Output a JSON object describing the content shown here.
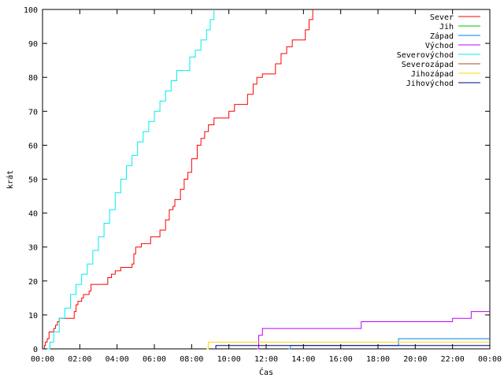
{
  "chart_data": {
    "type": "line",
    "xlabel": "Čas",
    "ylabel": "krát",
    "xlim": [
      0,
      24
    ],
    "ylim": [
      0,
      100
    ],
    "x_ticks": [
      "00:00",
      "02:00",
      "04:00",
      "06:00",
      "08:00",
      "10:00",
      "12:00",
      "14:00",
      "16:00",
      "18:00",
      "20:00",
      "22:00",
      "00:00"
    ],
    "y_ticks": [
      "0",
      "10",
      "20",
      "30",
      "40",
      "50",
      "60",
      "70",
      "80",
      "90",
      "100"
    ],
    "legend_position": "top-right",
    "series": [
      {
        "name": "Sever",
        "color": "#ff0000",
        "points": [
          [
            0,
            0
          ],
          [
            0.1,
            1
          ],
          [
            0.15,
            2
          ],
          [
            0.25,
            3
          ],
          [
            0.35,
            5
          ],
          [
            0.6,
            6
          ],
          [
            0.7,
            7
          ],
          [
            0.8,
            8
          ],
          [
            0.9,
            9
          ],
          [
            1.6,
            9
          ],
          [
            1.7,
            11
          ],
          [
            1.8,
            13
          ],
          [
            1.9,
            14
          ],
          [
            2.1,
            15
          ],
          [
            2.2,
            16
          ],
          [
            2.5,
            17
          ],
          [
            2.6,
            19
          ],
          [
            3.3,
            19
          ],
          [
            3.5,
            21
          ],
          [
            3.7,
            22
          ],
          [
            3.9,
            23
          ],
          [
            4.2,
            24
          ],
          [
            4.8,
            25
          ],
          [
            4.9,
            28
          ],
          [
            5.0,
            30
          ],
          [
            5.3,
            31
          ],
          [
            5.7,
            31
          ],
          [
            5.8,
            33
          ],
          [
            6.2,
            33
          ],
          [
            6.3,
            35
          ],
          [
            6.6,
            38
          ],
          [
            6.8,
            41
          ],
          [
            7.0,
            42
          ],
          [
            7.1,
            44
          ],
          [
            7.4,
            47
          ],
          [
            7.6,
            50
          ],
          [
            7.8,
            52
          ],
          [
            8.0,
            56
          ],
          [
            8.3,
            60
          ],
          [
            8.5,
            62
          ],
          [
            8.7,
            64
          ],
          [
            8.9,
            66
          ],
          [
            9.2,
            68
          ],
          [
            9.9,
            68
          ],
          [
            10.0,
            70
          ],
          [
            10.3,
            72
          ],
          [
            10.9,
            72
          ],
          [
            11.0,
            75
          ],
          [
            11.3,
            78
          ],
          [
            11.5,
            80
          ],
          [
            11.8,
            81
          ],
          [
            12.3,
            81
          ],
          [
            12.5,
            84
          ],
          [
            12.8,
            87
          ],
          [
            13.1,
            89
          ],
          [
            13.4,
            91
          ],
          [
            14.0,
            91
          ],
          [
            14.1,
            94
          ],
          [
            14.3,
            97
          ],
          [
            14.5,
            100
          ]
        ]
      },
      {
        "name": "Jih",
        "color": "#00c000",
        "points": []
      },
      {
        "name": "Západ",
        "color": "#0080ff",
        "points": [
          [
            13.2,
            0
          ],
          [
            13.3,
            1
          ],
          [
            19.0,
            1
          ],
          [
            19.1,
            3
          ],
          [
            24,
            3
          ]
        ]
      },
      {
        "name": "Východ",
        "color": "#c000ff",
        "points": [
          [
            11.5,
            0
          ],
          [
            11.6,
            4
          ],
          [
            11.8,
            6
          ],
          [
            17.0,
            6
          ],
          [
            17.1,
            8
          ],
          [
            21.9,
            8
          ],
          [
            22.0,
            9
          ],
          [
            22.9,
            9
          ],
          [
            23.0,
            11
          ],
          [
            24,
            11
          ]
        ]
      },
      {
        "name": "Severovýchod",
        "color": "#00eeee",
        "points": [
          [
            0,
            0
          ],
          [
            0.35,
            0
          ],
          [
            0.4,
            2
          ],
          [
            0.6,
            5
          ],
          [
            0.9,
            9
          ],
          [
            1.2,
            12
          ],
          [
            1.5,
            16
          ],
          [
            1.8,
            19
          ],
          [
            2.1,
            22
          ],
          [
            2.4,
            25
          ],
          [
            2.7,
            29
          ],
          [
            3.0,
            33
          ],
          [
            3.3,
            37
          ],
          [
            3.6,
            41
          ],
          [
            3.9,
            46
          ],
          [
            4.2,
            50
          ],
          [
            4.5,
            54
          ],
          [
            4.8,
            57
          ],
          [
            5.1,
            61
          ],
          [
            5.4,
            64
          ],
          [
            5.7,
            67
          ],
          [
            6.0,
            70
          ],
          [
            6.3,
            73
          ],
          [
            6.6,
            76
          ],
          [
            6.9,
            79
          ],
          [
            7.2,
            82
          ],
          [
            7.6,
            82
          ],
          [
            7.9,
            86
          ],
          [
            8.2,
            88
          ],
          [
            8.5,
            91
          ],
          [
            8.8,
            94
          ],
          [
            9.0,
            97
          ],
          [
            9.2,
            100
          ]
        ]
      },
      {
        "name": "Severozápad",
        "color": "#a0522d",
        "points": []
      },
      {
        "name": "Jihozápad",
        "color": "#ffd700",
        "points": [
          [
            8.8,
            0
          ],
          [
            8.9,
            2
          ],
          [
            24,
            2
          ]
        ]
      },
      {
        "name": "Jihovýchod",
        "color": "#000080",
        "points": [
          [
            9.2,
            0
          ],
          [
            9.3,
            1
          ],
          [
            24,
            1
          ]
        ]
      }
    ]
  }
}
